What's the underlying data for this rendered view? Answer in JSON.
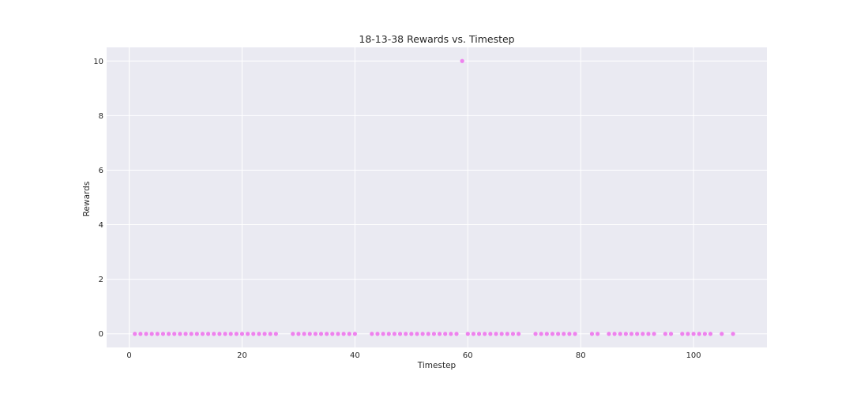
{
  "chart_data": {
    "type": "scatter",
    "title": "18-13-38 Rewards vs. Timestep",
    "xlabel": "Timestep",
    "ylabel": "Rewards",
    "xlim": [
      -4,
      113
    ],
    "ylim": [
      -0.5,
      10.5
    ],
    "xticks": [
      0,
      20,
      40,
      60,
      80,
      100
    ],
    "yticks": [
      0,
      2,
      4,
      6,
      8,
      10
    ],
    "grid": true,
    "color": "#ee82ee",
    "background": "#eaeaf2",
    "series": [
      {
        "x": [
          1,
          2,
          3,
          4,
          5,
          6,
          7,
          8,
          9,
          10,
          11,
          12,
          13,
          14,
          15,
          16,
          17,
          18,
          19,
          20,
          21,
          22,
          23,
          24,
          25,
          26,
          29,
          30,
          31,
          32,
          33,
          34,
          35,
          36,
          37,
          38,
          39,
          40,
          43,
          44,
          45,
          46,
          47,
          48,
          49,
          50,
          51,
          52,
          53,
          54,
          55,
          56,
          57,
          58,
          59,
          60,
          61,
          62,
          63,
          64,
          65,
          66,
          67,
          68,
          69,
          72,
          73,
          74,
          75,
          76,
          77,
          78,
          79,
          82,
          83,
          85,
          86,
          87,
          88,
          89,
          90,
          91,
          92,
          93,
          95,
          96,
          98,
          99,
          100,
          101,
          102,
          103,
          105,
          107
        ],
        "y": [
          0,
          0,
          0,
          0,
          0,
          0,
          0,
          0,
          0,
          0,
          0,
          0,
          0,
          0,
          0,
          0,
          0,
          0,
          0,
          0,
          0,
          0,
          0,
          0,
          0,
          0,
          0,
          0,
          0,
          0,
          0,
          0,
          0,
          0,
          0,
          0,
          0,
          0,
          0,
          0,
          0,
          0,
          0,
          0,
          0,
          0,
          0,
          0,
          0,
          0,
          0,
          0,
          0,
          0,
          10,
          0,
          0,
          0,
          0,
          0,
          0,
          0,
          0,
          0,
          0,
          0,
          0,
          0,
          0,
          0,
          0,
          0,
          0,
          0,
          0,
          0,
          0,
          0,
          0,
          0,
          0,
          0,
          0,
          0,
          0,
          0,
          0,
          0,
          0,
          0,
          0,
          0,
          0,
          0
        ]
      }
    ]
  }
}
